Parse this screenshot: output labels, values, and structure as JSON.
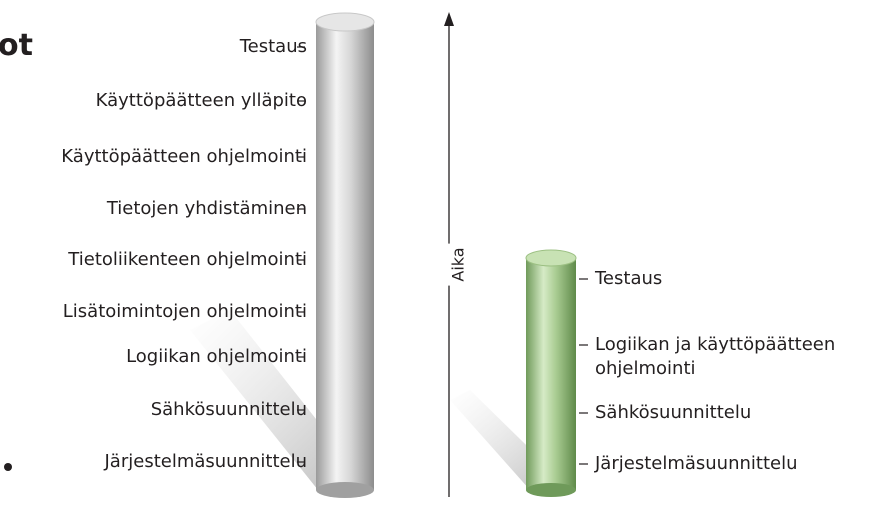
{
  "heading": "ot",
  "axis_label": "Aika",
  "left_column": {
    "items": [
      "Testaus",
      "Käyttöpäätteen ylläpito",
      "Käyttöpäätteen ohjelmointi",
      "Tietojen yhdistäminen",
      "Tietoliikenteen ohjelmointi",
      "Lisätoimintojen ohjelmointi",
      "Logiikan ohjelmointi",
      "Sähkösuunnittelu",
      "Järjestelmäsuunnittelu"
    ]
  },
  "right_column": {
    "items": [
      "Testaus",
      "Logiikan ja käyttöpäätteen ohjelmointi",
      "Sähkösuunnittelu",
      "Järjestelmäsuunnittelu"
    ]
  }
}
